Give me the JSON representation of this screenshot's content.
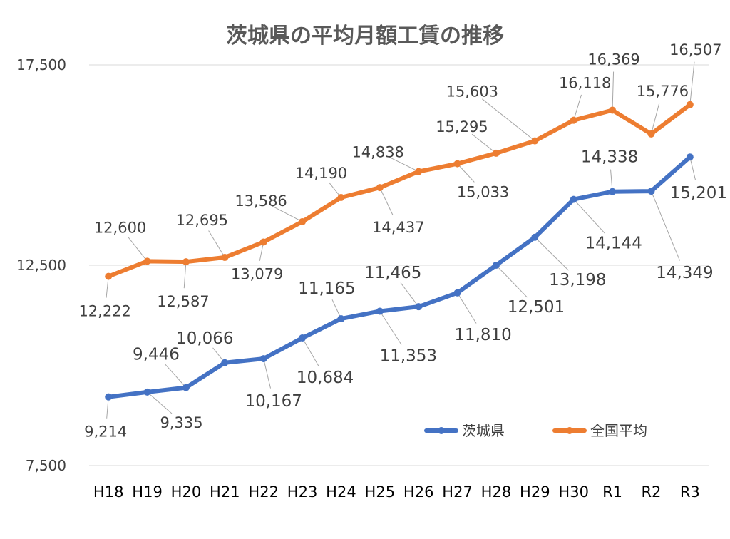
{
  "chart_data": {
    "type": "line",
    "title": "茨城県の平均月額工賃の推移",
    "xlabel": "",
    "ylabel": "",
    "categories": [
      "H18",
      "H19",
      "H20",
      "H21",
      "H22",
      "H23",
      "H24",
      "H25",
      "H26",
      "H27",
      "H28",
      "H29",
      "H30",
      "R1",
      "R2",
      "R3"
    ],
    "ylim": [
      7500,
      17500
    ],
    "yticks": [
      "7,500",
      "12,500",
      "17,500"
    ],
    "ytick_values": [
      7500,
      12500,
      17500
    ],
    "grid": true,
    "legend_position": "bottom-right",
    "series": [
      {
        "name": "茨城県",
        "color": "#4472c4",
        "values": [
          9214,
          9335,
          9446,
          10066,
          10167,
          10684,
          11165,
          11353,
          11465,
          11810,
          12501,
          13198,
          14144,
          14338,
          14349,
          15201
        ],
        "labels": [
          "9,214",
          "9,335",
          "9,446",
          "10,066",
          "10,167",
          "10,684",
          "11,165",
          "11,353",
          "11,465",
          "11,810",
          "12,501",
          "13,198",
          "14,144",
          "14,338",
          "14,349",
          "15,201"
        ]
      },
      {
        "name": "全国平均",
        "color": "#ed7d31",
        "values": [
          12222,
          12600,
          12587,
          12695,
          13079,
          13586,
          14190,
          14437,
          14838,
          15033,
          15295,
          15603,
          16118,
          16369,
          15776,
          16507
        ],
        "labels": [
          "12,222",
          "12,600",
          "12,587",
          "12,695",
          "13,079",
          "13,586",
          "14,190",
          "14,437",
          "14,838",
          "15,033",
          "15,295",
          "15,603",
          "16,118",
          "16,369",
          "15,776",
          "16,507"
        ]
      }
    ]
  }
}
